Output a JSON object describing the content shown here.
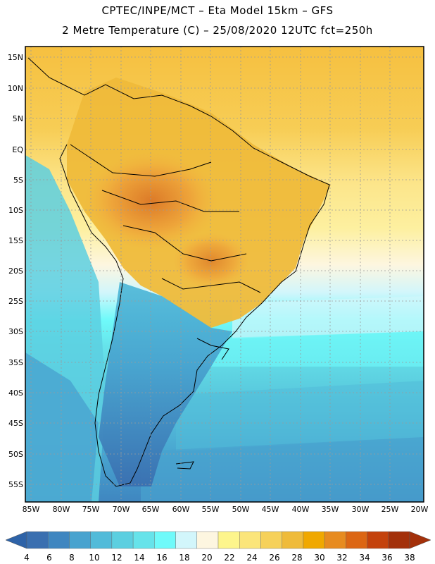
{
  "header": {
    "line1": "CPTEC/INPE/MCT –  Eta Model 15km – GFS",
    "line2": "2 Metre Temperature (C) – 25/08/2020 12UTC fct=250h"
  },
  "map": {
    "lat_labels": [
      "15N",
      "10N",
      "5N",
      "EQ",
      "5S",
      "10S",
      "15S",
      "20S",
      "25S",
      "30S",
      "35S",
      "40S",
      "45S",
      "50S",
      "55S"
    ],
    "lon_labels": [
      "85W",
      "80W",
      "75W",
      "70W",
      "65W",
      "60W",
      "55W",
      "50W",
      "45W",
      "40W",
      "35W",
      "30W",
      "25W",
      "20W"
    ]
  },
  "colorbar": {
    "labels": [
      "4",
      "6",
      "8",
      "10",
      "12",
      "14",
      "16",
      "18",
      "20",
      "22",
      "24",
      "26",
      "28",
      "30",
      "32",
      "34",
      "36",
      "38"
    ],
    "colors": [
      "#3a6fb0",
      "#3f86c0",
      "#48a3cf",
      "#52bbd9",
      "#5ccfe0",
      "#66e3ea",
      "#6ffafa",
      "#d2f6fb",
      "#fdf6e0",
      "#fdf58c",
      "#fbe57a",
      "#f6d15a",
      "#efbb3a",
      "#f0a800",
      "#e78b20",
      "#dc6614",
      "#c4420c",
      "#a3300a"
    ]
  }
}
